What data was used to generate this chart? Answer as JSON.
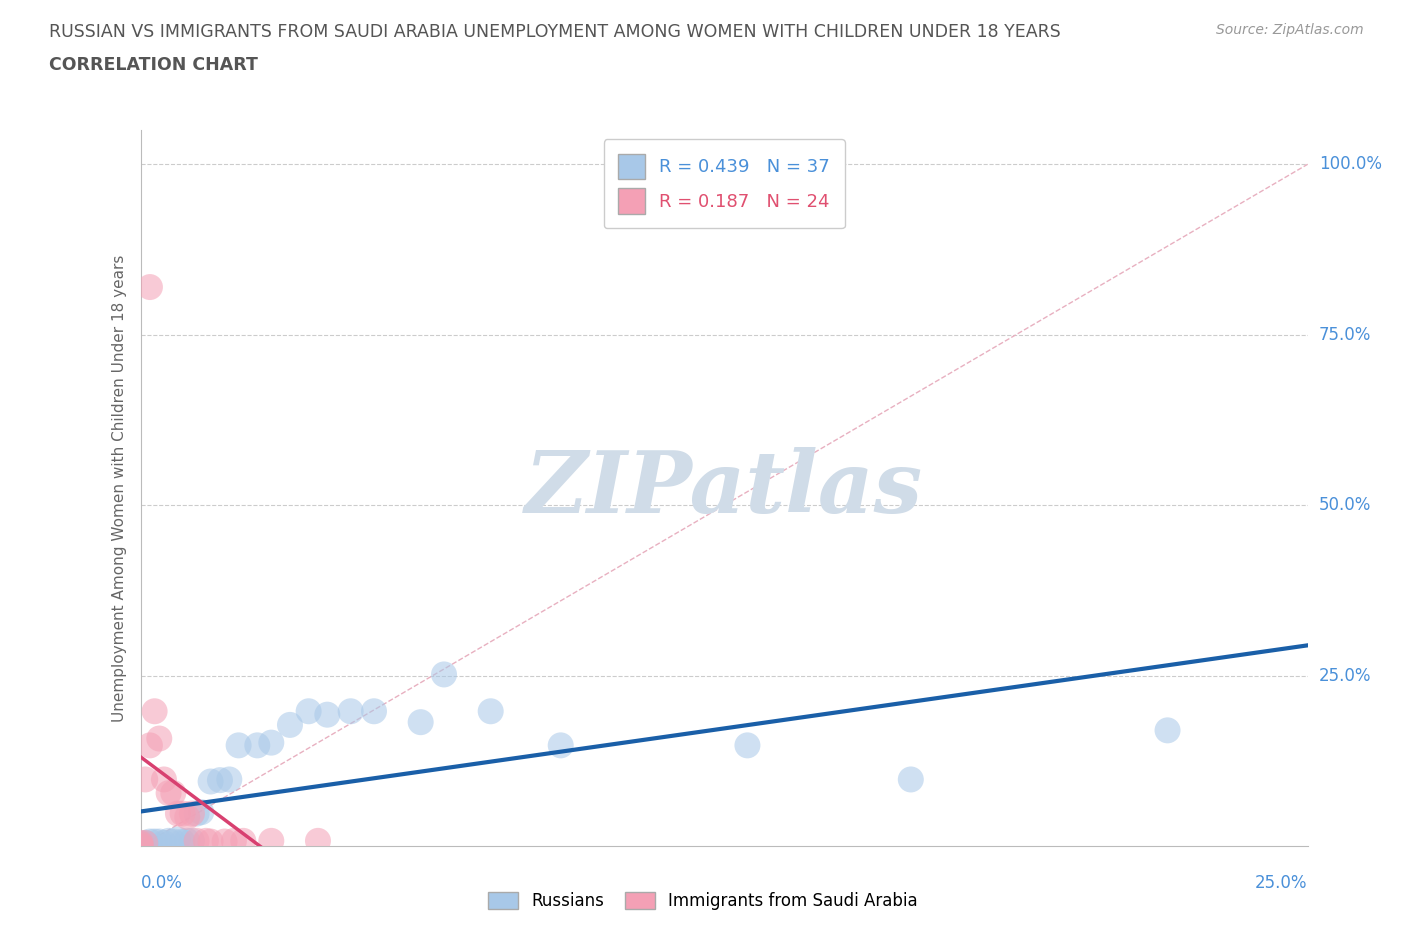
{
  "title_line1": "RUSSIAN VS IMMIGRANTS FROM SAUDI ARABIA UNEMPLOYMENT AMONG WOMEN WITH CHILDREN UNDER 18 YEARS",
  "title_line2": "CORRELATION CHART",
  "source": "Source: ZipAtlas.com",
  "ylabel": "Unemployment Among Women with Children Under 18 years",
  "xlim": [
    0.0,
    0.25
  ],
  "ylim": [
    0.0,
    1.05
  ],
  "russian_R": 0.439,
  "russian_N": 37,
  "saudi_R": 0.187,
  "saudi_N": 24,
  "russian_color": "#a8c8e8",
  "russian_line_color": "#1a5fa8",
  "saudi_color": "#f4a0b5",
  "saudi_line_color": "#d84070",
  "watermark": "ZIPatlas",
  "watermark_color": "#d0dce8",
  "background_color": "#ffffff",
  "grid_color": "#cccccc",
  "title_color": "#555555",
  "axis_label_color": "#4a90d9",
  "russians_x": [
    0.0,
    0.0,
    0.0,
    0.0,
    0.0,
    0.001,
    0.001,
    0.002,
    0.003,
    0.004,
    0.005,
    0.006,
    0.007,
    0.008,
    0.009,
    0.01,
    0.011,
    0.012,
    0.013,
    0.015,
    0.017,
    0.019,
    0.021,
    0.025,
    0.028,
    0.032,
    0.036,
    0.04,
    0.045,
    0.05,
    0.06,
    0.065,
    0.075,
    0.09,
    0.13,
    0.165,
    0.22
  ],
  "russians_y": [
    0.0,
    0.0,
    0.0,
    0.0,
    0.003,
    0.003,
    0.005,
    0.007,
    0.007,
    0.007,
    0.005,
    0.008,
    0.007,
    0.01,
    0.007,
    0.008,
    0.008,
    0.048,
    0.05,
    0.095,
    0.097,
    0.098,
    0.148,
    0.148,
    0.152,
    0.178,
    0.198,
    0.193,
    0.198,
    0.198,
    0.182,
    0.252,
    0.198,
    0.148,
    0.148,
    0.098,
    0.17
  ],
  "saudis_x": [
    0.0,
    0.0,
    0.0,
    0.001,
    0.001,
    0.002,
    0.003,
    0.004,
    0.005,
    0.006,
    0.007,
    0.008,
    0.009,
    0.01,
    0.011,
    0.012,
    0.014,
    0.015,
    0.018,
    0.02,
    0.022,
    0.028,
    0.038,
    0.002
  ],
  "saudis_y": [
    0.0,
    0.003,
    0.005,
    0.005,
    0.098,
    0.148,
    0.198,
    0.158,
    0.098,
    0.078,
    0.078,
    0.048,
    0.048,
    0.043,
    0.048,
    0.008,
    0.008,
    0.007,
    0.007,
    0.008,
    0.008,
    0.008,
    0.008,
    0.82
  ],
  "ytick_vals": [
    0.25,
    0.5,
    0.75,
    1.0
  ],
  "ytick_labels": [
    "25.0%",
    "50.0%",
    "75.0%",
    "100.0%"
  ],
  "xtick_left_label": "0.0%",
  "xtick_right_label": "25.0%"
}
